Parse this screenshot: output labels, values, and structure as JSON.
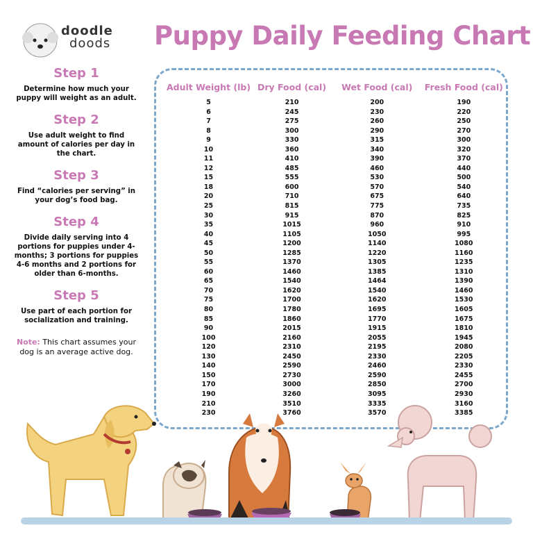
{
  "logo": {
    "line1": "doodle",
    "line2": "doods",
    "icon": "dog-face-icon"
  },
  "title": "Puppy Daily Feeding Chart",
  "steps": [
    {
      "title": "Step 1",
      "text": "Determine how much your puppy will weight as an adult."
    },
    {
      "title": "Step 2",
      "text": "Use adult weight to find amount of calories per day in the chart."
    },
    {
      "title": "Step 3",
      "text": "Find “calories per serving” in your dog’s food bag."
    },
    {
      "title": "Step 4",
      "text": "Divide daily serving into 4 portions for puppies under 4-months; 3 portions for puppies 4-6 months and 2 portions for older than 6-months."
    },
    {
      "title": "Step 5",
      "text": "Use part of each portion for socialization and training."
    }
  ],
  "note": {
    "label": "Note:",
    "text": " This chart assumes your dog is an average active dog."
  },
  "table": {
    "headers": [
      "Adult  Weight (lb)",
      "Dry Food (cal)",
      "Wet Food (cal)",
      "Fresh Food (cal)"
    ],
    "rows": [
      [
        "5",
        "210",
        "200",
        "190"
      ],
      [
        "6",
        "245",
        "230",
        "220"
      ],
      [
        "7",
        "275",
        "260",
        "250"
      ],
      [
        "8",
        "300",
        "290",
        "270"
      ],
      [
        "9",
        "330",
        "315",
        "300"
      ],
      [
        "10",
        "360",
        "340",
        "320"
      ],
      [
        "11",
        "410",
        "390",
        "370"
      ],
      [
        "12",
        "485",
        "460",
        "440"
      ],
      [
        "15",
        "555",
        "530",
        "500"
      ],
      [
        "18",
        "600",
        "570",
        "540"
      ],
      [
        "20",
        "710",
        "675",
        "640"
      ],
      [
        "25",
        "815",
        "775",
        "735"
      ],
      [
        "30",
        "915",
        "870",
        "825"
      ],
      [
        "35",
        "1015",
        "960",
        "910"
      ],
      [
        "40",
        "1105",
        "1050",
        "995"
      ],
      [
        "45",
        "1200",
        "1140",
        "1080"
      ],
      [
        "50",
        "1285",
        "1220",
        "1160"
      ],
      [
        "55",
        "1370",
        "1305",
        "1235"
      ],
      [
        "60",
        "1460",
        "1385",
        "1310"
      ],
      [
        "65",
        "1540",
        "1464",
        "1390"
      ],
      [
        "70",
        "1620",
        "1540",
        "1460"
      ],
      [
        "75",
        "1700",
        "1620",
        "1530"
      ],
      [
        "80",
        "1780",
        "1695",
        "1605"
      ],
      [
        "85",
        "1860",
        "1770",
        "1675"
      ],
      [
        "90",
        "2015",
        "1915",
        "1810"
      ],
      [
        "100",
        "2160",
        "2055",
        "1945"
      ],
      [
        "120",
        "2310",
        "2195",
        "2080"
      ],
      [
        "130",
        "2450",
        "2330",
        "2205"
      ],
      [
        "140",
        "2590",
        "2460",
        "2330"
      ],
      [
        "150",
        "2730",
        "2590",
        "2455"
      ],
      [
        "170",
        "3000",
        "2850",
        "2700"
      ],
      [
        "190",
        "3260",
        "3095",
        "2930"
      ],
      [
        "210",
        "3510",
        "3335",
        "3160"
      ],
      [
        "230",
        "3760",
        "3570",
        "3385"
      ]
    ]
  },
  "colors": {
    "accent": "#c879b4",
    "border": "#7ba7cc",
    "floor": "#b9d3e6"
  },
  "illustrations": [
    "golden-retriever-icon",
    "pug-icon",
    "collie-icon",
    "chihuahua-icon",
    "poodle-icon",
    "food-bowl-icon"
  ]
}
